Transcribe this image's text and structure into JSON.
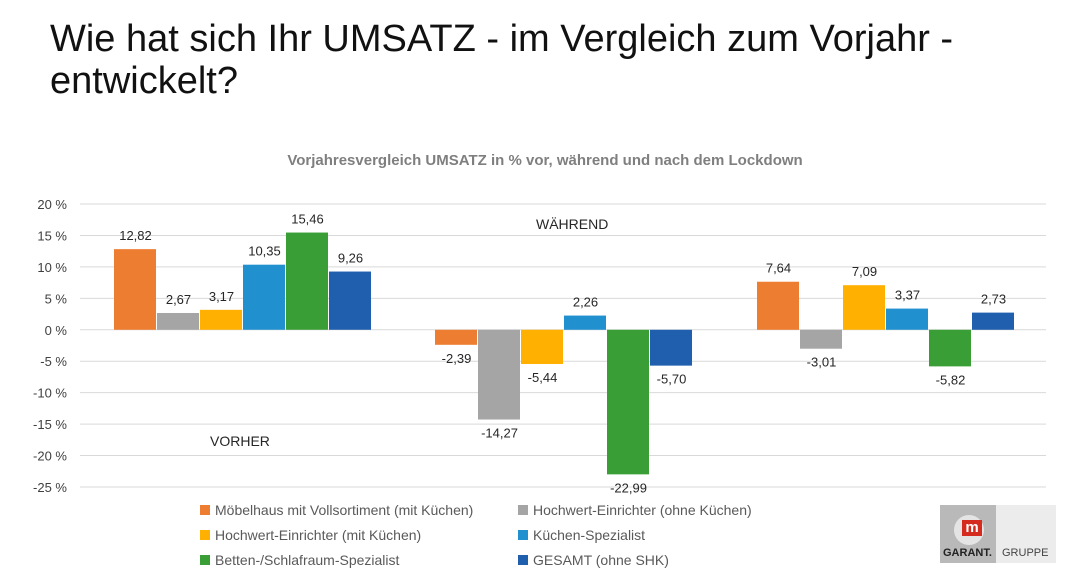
{
  "title": {
    "line1": "Wie hat sich Ihr UMSATZ - im Vergleich zum Vorjahr -",
    "line2": "entwickelt?"
  },
  "logo": {
    "brand": "GARANT.",
    "suffix": "GRUPPE",
    "mark": "m"
  },
  "chart_data": {
    "type": "bar",
    "title": "Vorjahresvergleich UMSATZ in % vor, während und nach dem Lockdown",
    "xlabel": "",
    "ylabel": "",
    "ylim": [
      -25,
      20
    ],
    "yticks": [
      20,
      15,
      10,
      5,
      0,
      -5,
      -10,
      -15,
      -20,
      -25
    ],
    "ytick_labels": [
      "20 %",
      "15 %",
      "10 %",
      "5 %",
      "0 %",
      "-5 %",
      "-10 %",
      "-15 %",
      "-20 %",
      "-25 %"
    ],
    "grid": true,
    "legend_position": "bottom",
    "annotations": [
      "VORHER",
      "WÄHREND"
    ],
    "series": [
      {
        "name": "Möbelhaus mit Vollsortiment (mit Küchen)",
        "color": "#ED7D31",
        "values": [
          12.82,
          -2.39,
          7.64
        ],
        "labels": [
          "12,82",
          "-2,39",
          "7,64"
        ]
      },
      {
        "name": "Hochwert-Einrichter (ohne Küchen)",
        "color": "#A5A5A5",
        "values": [
          2.67,
          -14.27,
          -3.01
        ],
        "labels": [
          "2,67",
          "-14,27",
          "-3,01"
        ]
      },
      {
        "name": "Hochwert-Einrichter (mit Küchen)",
        "color": "#FFB000",
        "values": [
          3.17,
          -5.44,
          7.09
        ],
        "labels": [
          "3,17",
          "-5,44",
          "7,09"
        ]
      },
      {
        "name": "Küchen-Spezialist",
        "color": "#2190CF",
        "values": [
          10.35,
          2.26,
          3.37
        ],
        "labels": [
          "10,35",
          "2,26",
          "3,37"
        ]
      },
      {
        "name": "Betten-/Schlafraum-Spezialist",
        "color": "#3A9E37",
        "values": [
          15.46,
          -22.99,
          -5.82
        ],
        "labels": [
          "15,46",
          "-22,99",
          "-5,82"
        ]
      },
      {
        "name": "GESAMT (ohne SHK)",
        "color": "#1F5FAE",
        "values": [
          9.26,
          -5.7,
          2.73
        ],
        "labels": [
          "9,26",
          "-5,70",
          "2,73"
        ]
      }
    ]
  }
}
